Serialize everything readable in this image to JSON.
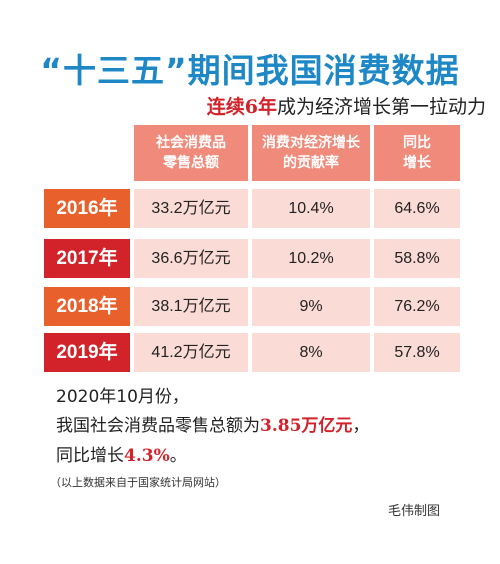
{
  "title": "“十三五”期间我国消费数据",
  "subtitle": {
    "highlight": "连续6年",
    "rest": "成为经济增长第一拉动力"
  },
  "chart_data": {
    "type": "table",
    "columns": [
      {
        "line1": "社会消费品",
        "line2": "零售总额"
      },
      {
        "line1": "消费对经济增长",
        "line2": "的贡献率"
      },
      {
        "line1": "同比",
        "line2": "增长"
      }
    ],
    "rows": [
      {
        "year": "2016年",
        "total": "33.2万亿元",
        "contribution": "10.4%",
        "growth": "64.6%"
      },
      {
        "year": "2017年",
        "total": "36.6万亿元",
        "contribution": "10.2%",
        "growth": "58.8%"
      },
      {
        "year": "2018年",
        "total": "38.1万亿元",
        "contribution": "9%",
        "growth": "76.2%"
      },
      {
        "year": "2019年",
        "total": "41.2万亿元",
        "contribution": "8%",
        "growth": "57.8%"
      }
    ],
    "year_colors": [
      "#e8612c",
      "#d2232a",
      "#e8612c",
      "#d2232a"
    ],
    "header_color": "#f08a7a",
    "cell_color": "#fadbd6"
  },
  "note": {
    "line1": "2020年10月份，",
    "line2_pre": "我国社会消费品零售总额为",
    "line2_value": "3.85万亿元",
    "line2_post": "，",
    "line3_pre": "同比增长",
    "line3_value": "4.3%",
    "line3_post": "。"
  },
  "source": "（以上数据来自于国家统计局网站）",
  "credit": "毛伟制图"
}
